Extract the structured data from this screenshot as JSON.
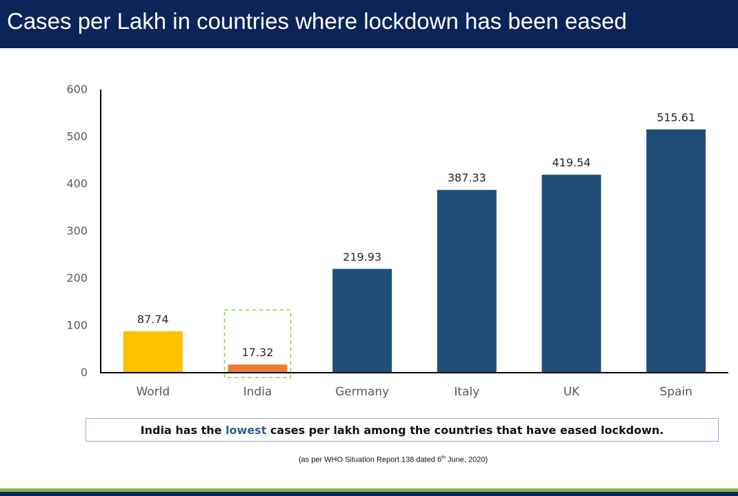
{
  "header": {
    "title": "Cases per Lakh in countries where lockdown has been eased"
  },
  "chart_data": {
    "type": "bar",
    "categories": [
      "World",
      "India",
      "Germany",
      "Italy",
      "UK",
      "Spain"
    ],
    "values": [
      87.74,
      17.32,
      219.93,
      387.33,
      419.54,
      515.61
    ],
    "data_labels": [
      "87.74",
      "17.32",
      "219.93",
      "387.33",
      "419.54",
      "515.61"
    ],
    "bar_colors": [
      "#ffc000",
      "#ed7d31",
      "#1f4e79",
      "#1f4e79",
      "#1f4e79",
      "#1f4e79"
    ],
    "highlighted_category": "India",
    "highlight_color": "#92d050",
    "yticks": [
      0,
      100,
      200,
      300,
      400,
      500,
      600
    ],
    "ylim": [
      0,
      600
    ],
    "grid": false,
    "xlabel": "",
    "ylabel": ""
  },
  "callout": {
    "prefix": "India has the ",
    "highlight": "lowest",
    "suffix": " cases per lakh among the countries that have eased lockdown."
  },
  "source": {
    "before": "(as per WHO Situation Report 138 dated 6",
    "sup": "th",
    "after": " June, 2020)"
  },
  "colors": {
    "header_bg": "#0c2559",
    "footer_green": "#7ab648",
    "callout_highlight": "#2e5e9a"
  }
}
